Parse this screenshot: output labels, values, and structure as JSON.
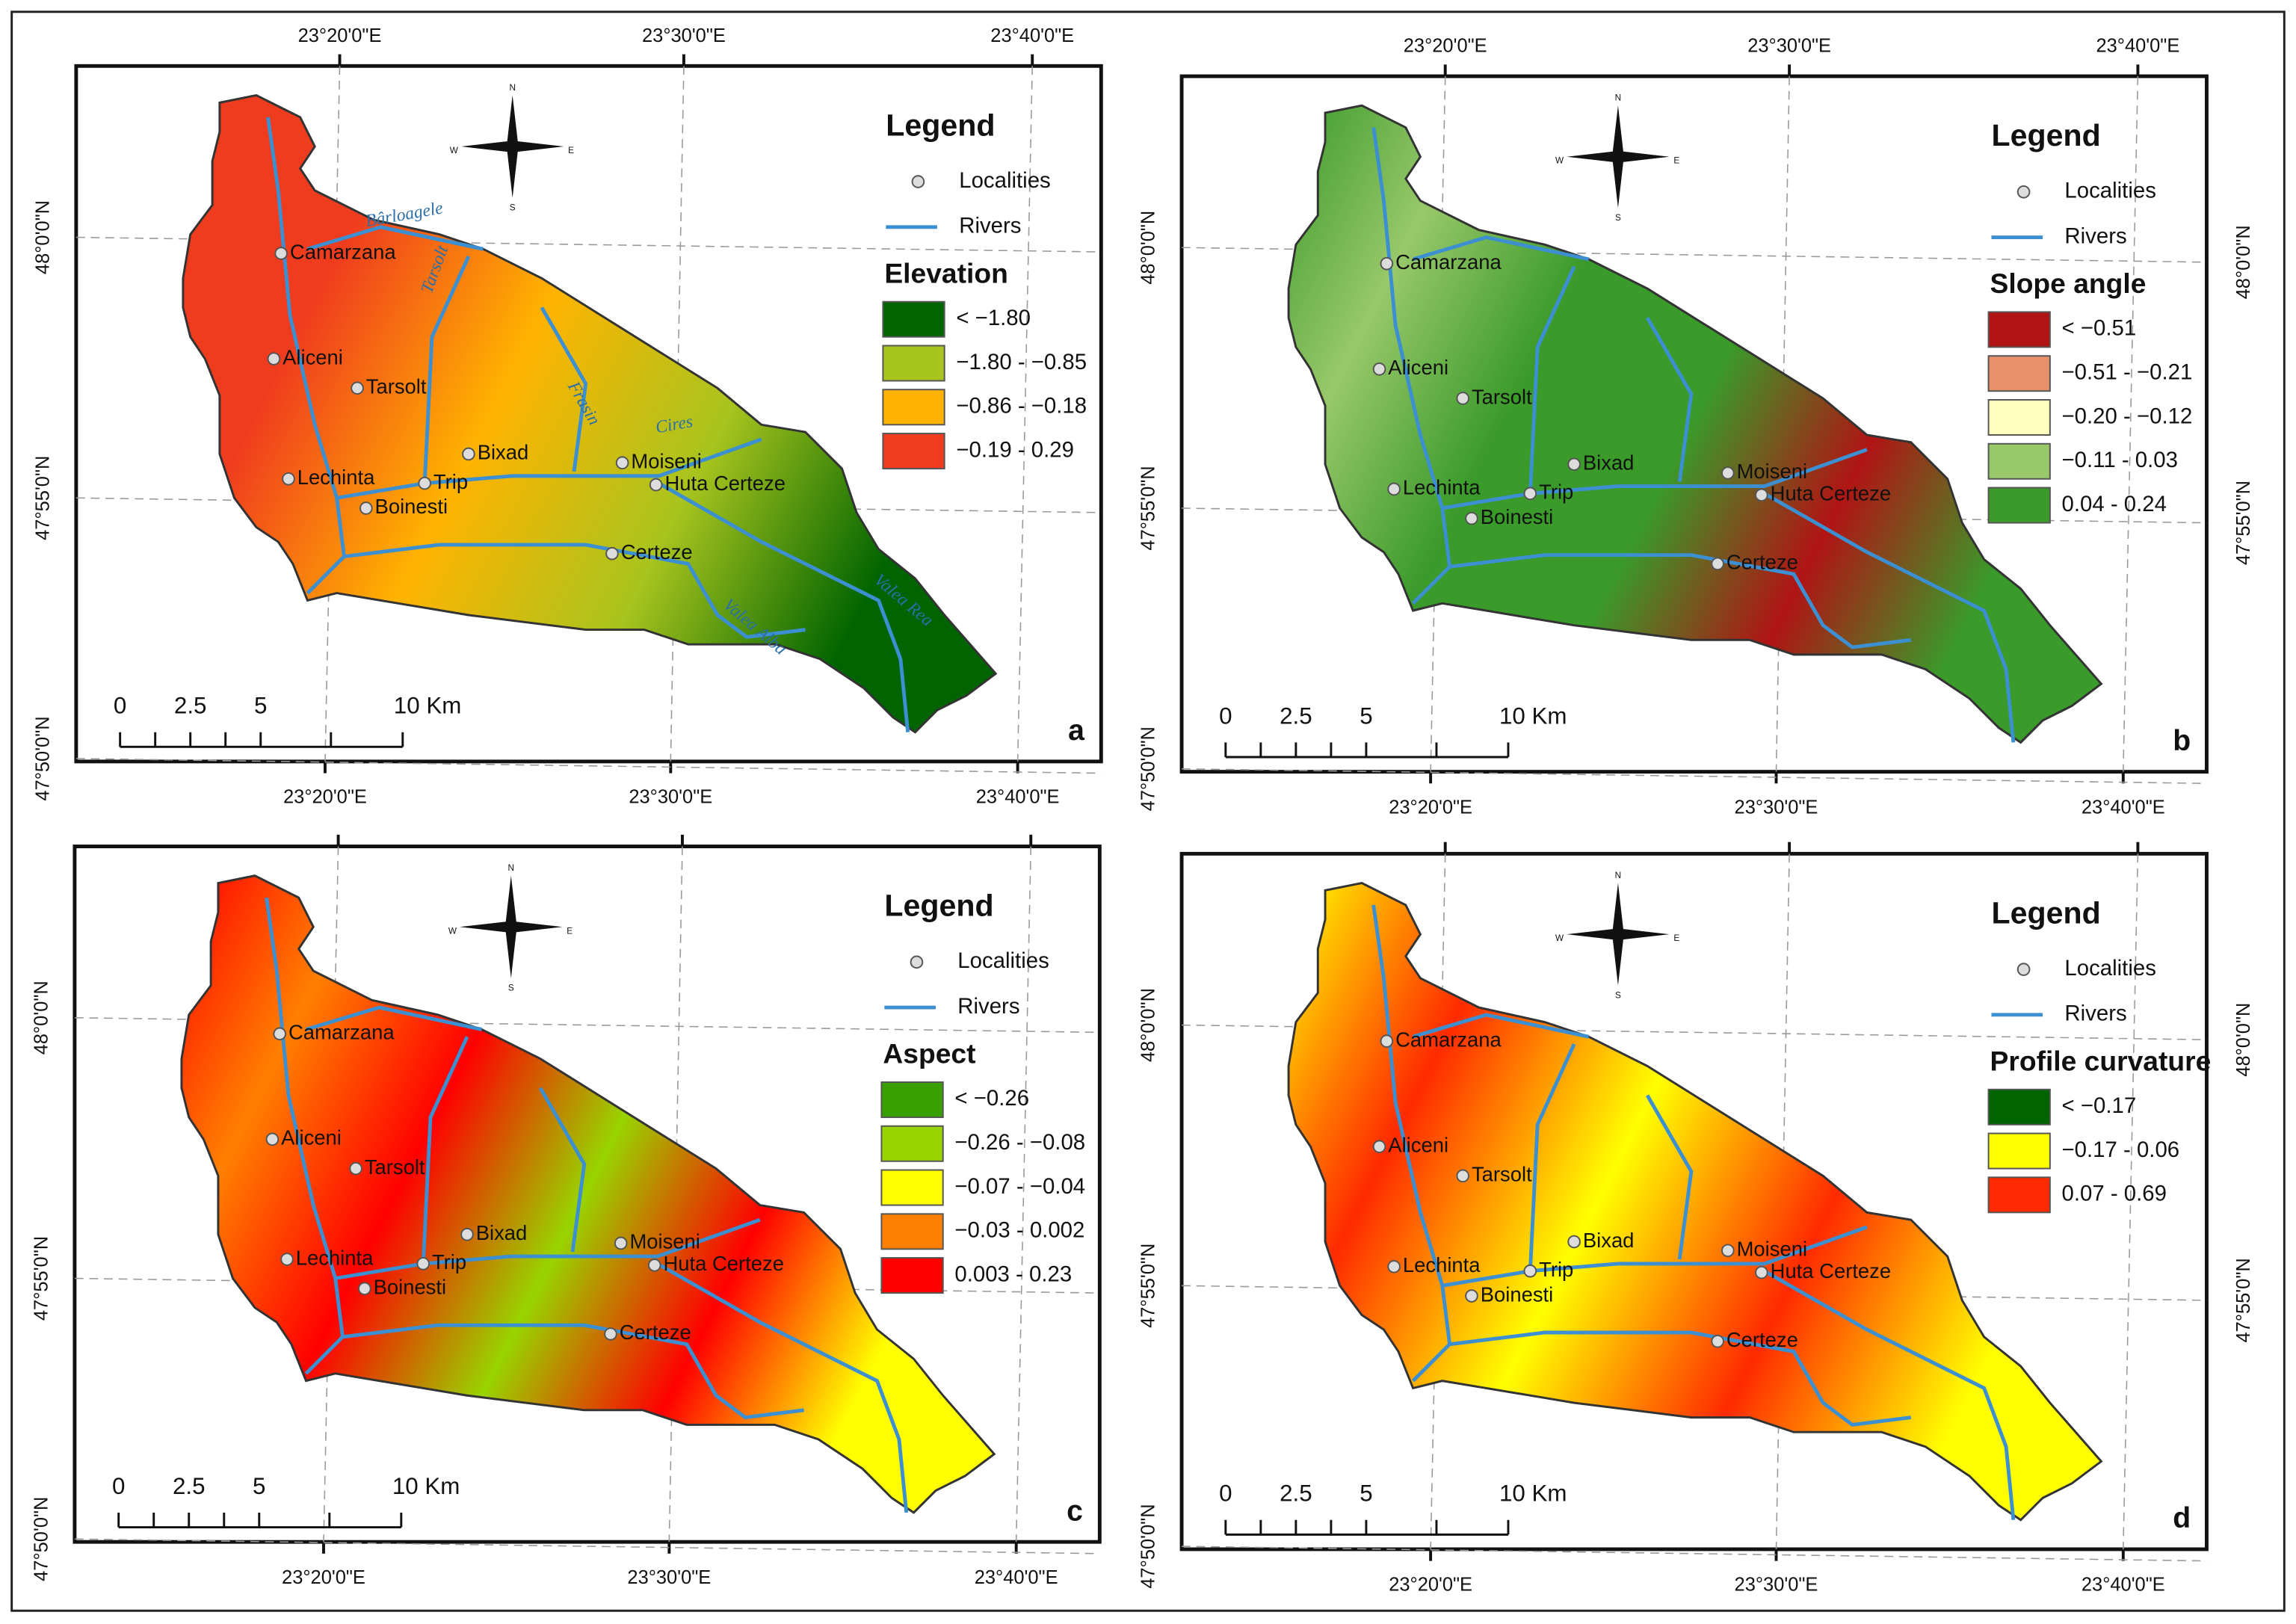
{
  "localities_label": "Localities",
  "rivers_label": "Rivers",
  "legend_word": "Legend",
  "compass": [
    "N",
    "E",
    "S",
    "W"
  ],
  "scale_labels": [
    "0",
    "2.5",
    "5",
    "10 Km"
  ],
  "localities": [
    "Camarzana",
    "Aliceni",
    "Tarsolt",
    "Bixad",
    "Lechinta",
    "Trip",
    "Boinesti",
    "Moiseni",
    "Huta Certeze",
    "Certeze"
  ],
  "panels": [
    {
      "letter": "a",
      "legend_title": "Elevation",
      "legend_items": [
        {
          "label": "< −1.80",
          "color": "#006400"
        },
        {
          "label": "−1.80 - −0.85",
          "color": "#a8c41e"
        },
        {
          "label": "−0.86 - −0.18",
          "color": "#ffb300"
        },
        {
          "label": "−0.19 - 0.29",
          "color": "#f03c1e"
        }
      ],
      "river_names": [
        "Bârloagele",
        "Tarsolt",
        "Frasin",
        "Cires",
        "Valea Rea",
        "Valea Alba"
      ],
      "top_labels": [
        "23°20'0\"E",
        "23°30'0\"E",
        "23°40'0\"E"
      ],
      "bottom_labels": [
        "23°20'0\"E",
        "23°30'0\"E",
        "23°40'0\"E"
      ],
      "left_labels": [
        "48°0'0\"N",
        "47°55'0\"N",
        "47°50'0\"N"
      ]
    },
    {
      "letter": "b",
      "legend_title": "Slope angle",
      "legend_items": [
        {
          "label": "< −0.51",
          "color": "#b01414"
        },
        {
          "label": "−0.51 - −0.21",
          "color": "#e8906a"
        },
        {
          "label": "−0.20 - −0.12",
          "color": "#ffffc0"
        },
        {
          "label": "−0.11 - 0.03",
          "color": "#98c86a"
        },
        {
          "label": "0.04 - 0.24",
          "color": "#3a9a2a"
        }
      ],
      "top_labels": [
        "23°20'0\"E",
        "23°30'0\"E",
        "23°40'0\"E"
      ],
      "bottom_labels": [
        "23°20'0\"E",
        "23°30'0\"E",
        "23°40'0\"E"
      ],
      "left_labels": [
        "48°0'0\"N",
        "47°55'0\"N",
        "47°50'0\"N"
      ],
      "right_labels": [
        "48°0'0\"N",
        "47°55'0\"N"
      ]
    },
    {
      "letter": "c",
      "legend_title": "Aspect",
      "legend_items": [
        {
          "label": "< −0.26",
          "color": "#38a000"
        },
        {
          "label": "−0.26 - −0.08",
          "color": "#98d400"
        },
        {
          "label": "−0.07 - −0.04",
          "color": "#ffff00"
        },
        {
          "label": "−0.03 - 0.002",
          "color": "#ff8000"
        },
        {
          "label": "0.003 - 0.23",
          "color": "#ff0000"
        }
      ],
      "bottom_labels": [
        "23°20'0\"E",
        "23°30'0\"E",
        "23°40'0\"E"
      ],
      "left_labels": [
        "48°0'0\"N",
        "47°55'0\"N",
        "47°50'0\"N"
      ]
    },
    {
      "letter": "d",
      "legend_title": "Profile curvature",
      "legend_items": [
        {
          "label": "< −0.17",
          "color": "#006400"
        },
        {
          "label": "−0.17 - 0.06",
          "color": "#ffff00"
        },
        {
          "label": "0.07 - 0.69",
          "color": "#ff2a00"
        }
      ],
      "bottom_labels": [
        "23°20'0\"E",
        "23°30'0\"E",
        "23°40'0\"E"
      ],
      "left_labels": [
        "48°0'0\"N",
        "47°55'0\"N",
        "47°50'0\"N"
      ],
      "right_labels": [
        "48°0'0\"N",
        "47°55'0\"N"
      ]
    }
  ]
}
